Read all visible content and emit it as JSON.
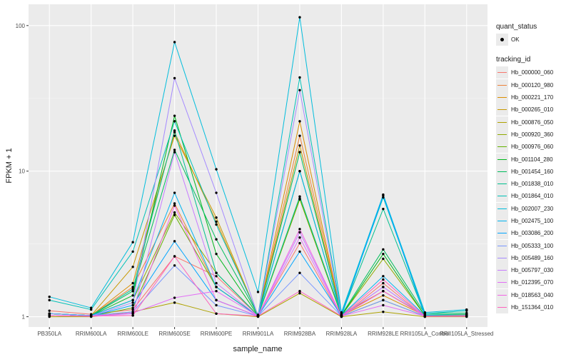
{
  "chart_data": {
    "type": "line",
    "xlabel": "sample_name",
    "ylabel": "FPKM + 1",
    "y_scale": "log10",
    "ylim": [
      0.85,
      140
    ],
    "y_ticks": [
      1,
      10,
      100
    ],
    "y_tick_labels": [
      "1",
      "10",
      "100"
    ],
    "grid": true,
    "legend_position": "right",
    "categories": [
      "PB350LA",
      "RRIM600LA",
      "RRIM600LE",
      "RRIM600SE",
      "RRIM600PE",
      "RRIM901LA",
      "RRIM928BA",
      "RRIM928LA",
      "RRIM928LE",
      "RRII105LA_Control",
      "RRII105LA_Stressed"
    ],
    "point_legend_title": "quant_status",
    "point_legend_label": "OK",
    "color_legend_title": "tracking_id",
    "series": [
      {
        "name": "Hb_000000_060",
        "color": "#F8766D",
        "values": [
          1.1,
          1.04,
          1.12,
          2.6,
          1.9,
          1.02,
          3.2,
          1.0,
          1.7,
          1.0,
          1.02
        ]
      },
      {
        "name": "Hb_000120_980",
        "color": "#EC8239",
        "values": [
          1.05,
          1.02,
          1.6,
          6.0,
          1.6,
          1.02,
          17.5,
          1.04,
          1.5,
          1.02,
          1.03
        ]
      },
      {
        "name": "Hb_000221_170",
        "color": "#DB8E00",
        "values": [
          1.05,
          1.02,
          1.7,
          18.5,
          4.5,
          1.02,
          22.0,
          1.02,
          1.4,
          1.02,
          1.02
        ]
      },
      {
        "name": "Hb_000265_010",
        "color": "#C79800",
        "values": [
          1.05,
          1.02,
          2.2,
          17.5,
          4.8,
          1.02,
          15.0,
          1.02,
          1.5,
          1.02,
          1.02
        ]
      },
      {
        "name": "Hb_000876_050",
        "color": "#AEA200",
        "values": [
          1.0,
          1.0,
          1.08,
          1.25,
          1.05,
          1.0,
          1.45,
          1.0,
          1.08,
          1.0,
          1.0
        ]
      },
      {
        "name": "Hb_000920_360",
        "color": "#8FAA00",
        "values": [
          1.05,
          1.02,
          1.3,
          5.2,
          2.0,
          1.02,
          6.4,
          1.02,
          2.5,
          1.02,
          1.03
        ]
      },
      {
        "name": "Hb_000976_060",
        "color": "#64B200",
        "values": [
          1.02,
          1.01,
          1.15,
          5.0,
          1.6,
          1.01,
          6.5,
          1.01,
          1.3,
          1.01,
          1.01
        ]
      },
      {
        "name": "Hb_001104_280",
        "color": "#00B81B",
        "values": [
          1.05,
          1.02,
          1.4,
          24.0,
          2.7,
          1.02,
          10.0,
          1.02,
          2.7,
          1.02,
          1.02
        ]
      },
      {
        "name": "Hb_001454_160",
        "color": "#00BD5C",
        "values": [
          1.05,
          1.02,
          1.5,
          14.0,
          3.4,
          1.03,
          13.5,
          1.03,
          2.9,
          1.05,
          1.06
        ]
      },
      {
        "name": "Hb_001838_010",
        "color": "#00C08E",
        "values": [
          1.05,
          1.02,
          1.55,
          19.0,
          2.0,
          1.02,
          6.7,
          1.03,
          5.5,
          1.03,
          1.04
        ]
      },
      {
        "name": "Hb_001864_010",
        "color": "#00C1B7",
        "values": [
          1.3,
          1.12,
          2.8,
          22.0,
          4.3,
          1.03,
          44.0,
          1.05,
          6.6,
          1.05,
          1.1
        ]
      },
      {
        "name": "Hb_002007_230",
        "color": "#00BDDC",
        "values": [
          1.37,
          1.15,
          3.25,
          77.0,
          10.3,
          1.48,
          114.0,
          1.07,
          6.9,
          1.07,
          1.12
        ]
      },
      {
        "name": "Hb_002475_100",
        "color": "#00B4F0",
        "values": [
          1.05,
          1.02,
          1.3,
          7.1,
          1.6,
          1.01,
          10.0,
          1.02,
          1.9,
          1.02,
          1.02
        ]
      },
      {
        "name": "Hb_003086_200",
        "color": "#00A5FF",
        "values": [
          1.02,
          1.01,
          1.2,
          3.3,
          1.3,
          1.01,
          2.8,
          1.01,
          6.8,
          1.01,
          1.01
        ]
      },
      {
        "name": "Hb_005333_100",
        "color": "#7997FF",
        "values": [
          1.05,
          1.02,
          1.08,
          2.25,
          1.2,
          1.01,
          2.0,
          1.01,
          1.3,
          1.01,
          1.01
        ]
      },
      {
        "name": "Hb_005489_160",
        "color": "#A58AFF",
        "values": [
          1.02,
          1.01,
          1.25,
          43.5,
          7.1,
          1.01,
          36.0,
          1.01,
          1.6,
          1.01,
          1.02
        ]
      },
      {
        "name": "Hb_005797_030",
        "color": "#C77CFF",
        "values": [
          1.02,
          1.01,
          1.05,
          13.5,
          1.7,
          1.01,
          3.8,
          1.01,
          1.6,
          1.01,
          1.01
        ]
      },
      {
        "name": "Hb_012395_070",
        "color": "#E36EF6",
        "values": [
          1.02,
          1.01,
          1.06,
          1.35,
          1.5,
          1.01,
          3.5,
          1.01,
          1.2,
          1.01,
          1.01
        ]
      },
      {
        "name": "Hb_018563_040",
        "color": "#F365E6",
        "values": [
          1.02,
          1.01,
          1.02,
          5.8,
          1.3,
          1.01,
          4.0,
          1.01,
          1.5,
          1.01,
          1.01
        ]
      },
      {
        "name": "Hb_151364_010",
        "color": "#FF62BC",
        "values": [
          1.02,
          1.01,
          1.02,
          2.6,
          1.05,
          1.01,
          1.5,
          1.01,
          1.8,
          1.01,
          1.01
        ]
      }
    ]
  }
}
